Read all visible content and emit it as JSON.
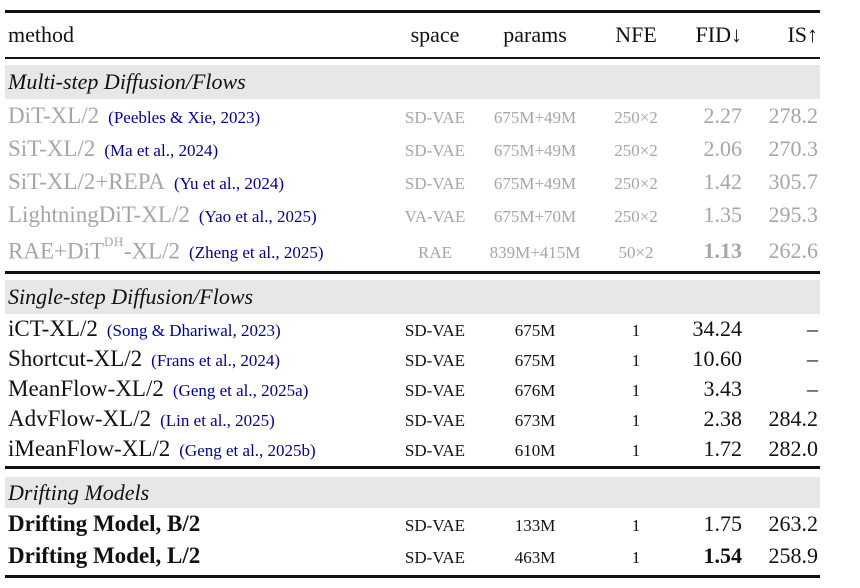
{
  "colors": {
    "muted_text": "#a6a6a6",
    "citation_blue": "#00008b",
    "section_band_bg": "#e7e7e7",
    "rule_black": "#111111"
  },
  "table": {
    "columns": [
      "method",
      "space",
      "params",
      "NFE",
      "FID↓",
      "IS↑"
    ],
    "sections": [
      {
        "title": "Multi-step Diffusion/Flows",
        "rows": [
          {
            "method": "DiT-XL/2",
            "cite": "(Peebles & Xie, 2023)",
            "space": "SD-VAE",
            "params": "675M+49M",
            "nfe": "250×2",
            "fid": "2.27",
            "is": "278.2"
          },
          {
            "method": "SiT-XL/2",
            "cite": "(Ma et al., 2024)",
            "space": "SD-VAE",
            "params": "675M+49M",
            "nfe": "250×2",
            "fid": "2.06",
            "is": "270.3"
          },
          {
            "method": "SiT-XL/2+REPA",
            "cite": "(Yu et al., 2024)",
            "space": "SD-VAE",
            "params": "675M+49M",
            "nfe": "250×2",
            "fid": "1.42",
            "is": "305.7"
          },
          {
            "method": "LightningDiT-XL/2",
            "cite": "(Yao et al., 2025)",
            "space": "VA-VAE",
            "params": "675M+70M",
            "nfe": "250×2",
            "fid": "1.35",
            "is": "295.3"
          },
          {
            "method": "RAE+DiT",
            "method_sup": "DH",
            "method_post": "-XL/2",
            "cite": "(Zheng et al., 2025)",
            "space": "RAE",
            "params": "839M+415M",
            "nfe": "50×2",
            "fid": "1.13",
            "is": "262.6"
          }
        ]
      },
      {
        "title": "Single-step Diffusion/Flows",
        "rows": [
          {
            "method": "iCT-XL/2",
            "cite": "(Song & Dhariwal, 2023)",
            "space": "SD-VAE",
            "params": "675M",
            "nfe": "1",
            "fid": "34.24",
            "is": "–"
          },
          {
            "method": "Shortcut-XL/2",
            "cite": "(Frans et al., 2024)",
            "space": "SD-VAE",
            "params": "675M",
            "nfe": "1",
            "fid": "10.60",
            "is": "–"
          },
          {
            "method": "MeanFlow-XL/2",
            "cite": "(Geng et al., 2025a)",
            "space": "SD-VAE",
            "params": "676M",
            "nfe": "1",
            "fid": "3.43",
            "is": "–"
          },
          {
            "method": "AdvFlow-XL/2",
            "cite": "(Lin et al., 2025)",
            "space": "SD-VAE",
            "params": "673M",
            "nfe": "1",
            "fid": "2.38",
            "is": "284.2"
          },
          {
            "method": "iMeanFlow-XL/2",
            "cite": "(Geng et al., 2025b)",
            "space": "SD-VAE",
            "params": "610M",
            "nfe": "1",
            "fid": "1.72",
            "is": "282.0"
          }
        ]
      },
      {
        "title": "Drifting Models",
        "rows": [
          {
            "method": "Drifting Model, B/2",
            "space": "SD-VAE",
            "params": "133M",
            "nfe": "1",
            "fid": "1.75",
            "is": "263.2"
          },
          {
            "method": "Drifting Model, L/2",
            "space": "SD-VAE",
            "params": "463M",
            "nfe": "1",
            "fid": "1.54",
            "is": "258.9"
          }
        ]
      }
    ]
  }
}
